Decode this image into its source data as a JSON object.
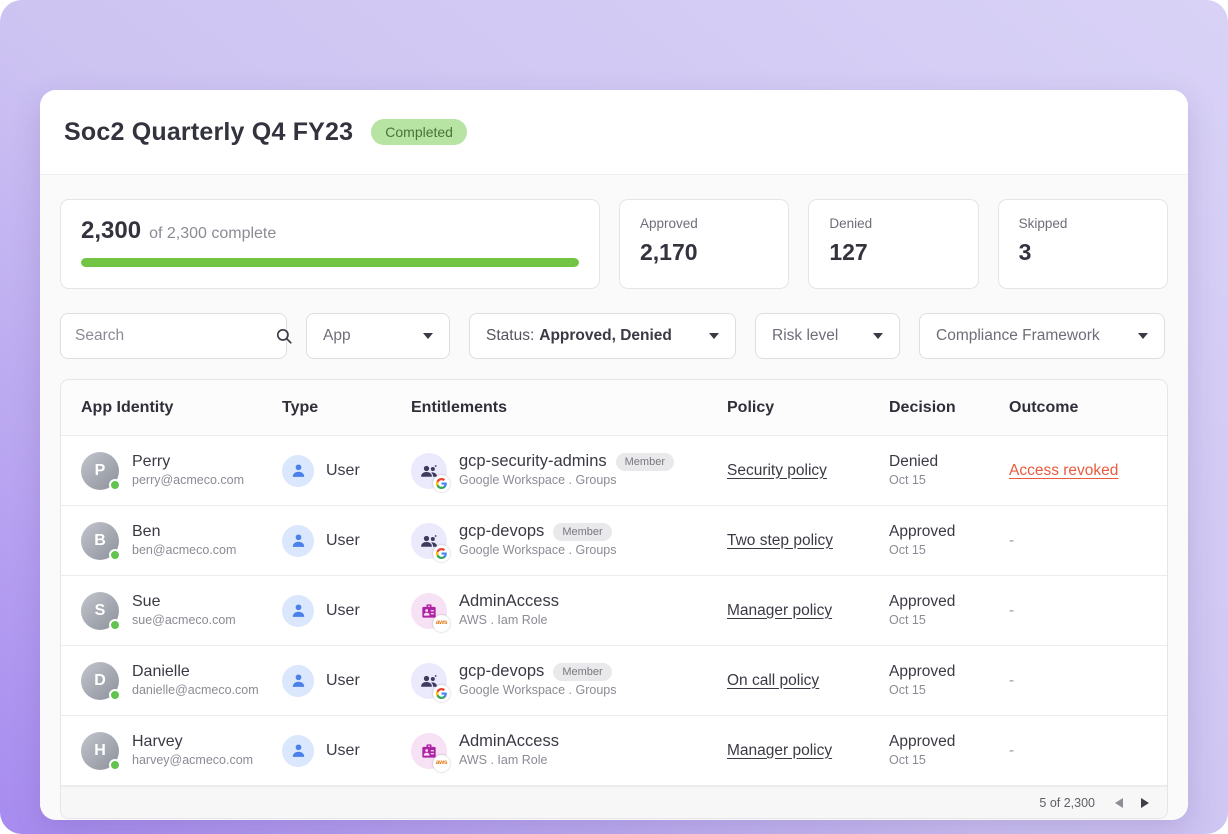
{
  "page": {
    "title": "Soc2 Quarterly Q4 FY23",
    "status_badge": "Completed"
  },
  "summary": {
    "progress": {
      "value": "2,300",
      "suffix": "of 2,300 complete",
      "percent": 100
    },
    "stats": [
      {
        "label": "Approved",
        "value": "2,170"
      },
      {
        "label": "Denied",
        "value": "127"
      },
      {
        "label": "Skipped",
        "value": "3"
      }
    ]
  },
  "filters": {
    "search": {
      "placeholder": "Search"
    },
    "app": {
      "label": "App"
    },
    "status": {
      "prefix": "Status:",
      "value": "Approved, Denied"
    },
    "risk": {
      "label": "Risk level"
    },
    "framework": {
      "label": "Compliance Framework"
    }
  },
  "table": {
    "columns": [
      "App Identity",
      "Type",
      "Entitlements",
      "Policy",
      "Decision",
      "Outcome"
    ],
    "rows": [
      {
        "name": "Perry",
        "email": "perry@acmeco.com",
        "type": "User",
        "entitlement": {
          "name": "gcp-security-admins",
          "badge": "Member",
          "source": "Google Workspace . Groups",
          "provider": "google"
        },
        "policy": "Security policy",
        "decision": "Denied",
        "decision_date": "Oct 15",
        "outcome": "Access revoked"
      },
      {
        "name": "Ben",
        "email": "ben@acmeco.com",
        "type": "User",
        "entitlement": {
          "name": "gcp-devops",
          "badge": "Member",
          "source": "Google Workspace . Groups",
          "provider": "google"
        },
        "policy": "Two step policy",
        "decision": "Approved",
        "decision_date": "Oct 15",
        "outcome": "-"
      },
      {
        "name": "Sue",
        "email": "sue@acmeco.com",
        "type": "User",
        "entitlement": {
          "name": "AdminAccess",
          "badge": "",
          "source": "AWS . Iam Role",
          "provider": "aws"
        },
        "policy": "Manager policy",
        "decision": "Approved",
        "decision_date": "Oct 15",
        "outcome": "-"
      },
      {
        "name": "Danielle",
        "email": "danielle@acmeco.com",
        "type": "User",
        "entitlement": {
          "name": "gcp-devops",
          "badge": "Member",
          "source": "Google Workspace . Groups",
          "provider": "google"
        },
        "policy": "On call policy",
        "decision": "Approved",
        "decision_date": "Oct 15",
        "outcome": "-"
      },
      {
        "name": "Harvey",
        "email": "harvey@acmeco.com",
        "type": "User",
        "entitlement": {
          "name": "AdminAccess",
          "badge": "",
          "source": "AWS . Iam Role",
          "provider": "aws"
        },
        "policy": "Manager policy",
        "decision": "Approved",
        "decision_date": "Oct 15",
        "outcome": "-"
      }
    ],
    "pagination": {
      "label": "5 of 2,300"
    }
  },
  "colors": {
    "bg_grad_dark": "#a78bf0",
    "bg_grad_light": "#d9d2f6",
    "badge_bg": "#b7e4a2",
    "badge_text": "#4a7339",
    "progress_green": "#72c544",
    "status_dot": "#62c34e",
    "type_blue": "#4a80e9",
    "type_circle": "#dbe7fc",
    "google_circle": "#ebe9fc",
    "google_glyph": "#3c3b5e",
    "aws_circle": "#f7e1f4",
    "aws_glyph": "#ae22a4",
    "outcome_red": "#e85b3d"
  }
}
